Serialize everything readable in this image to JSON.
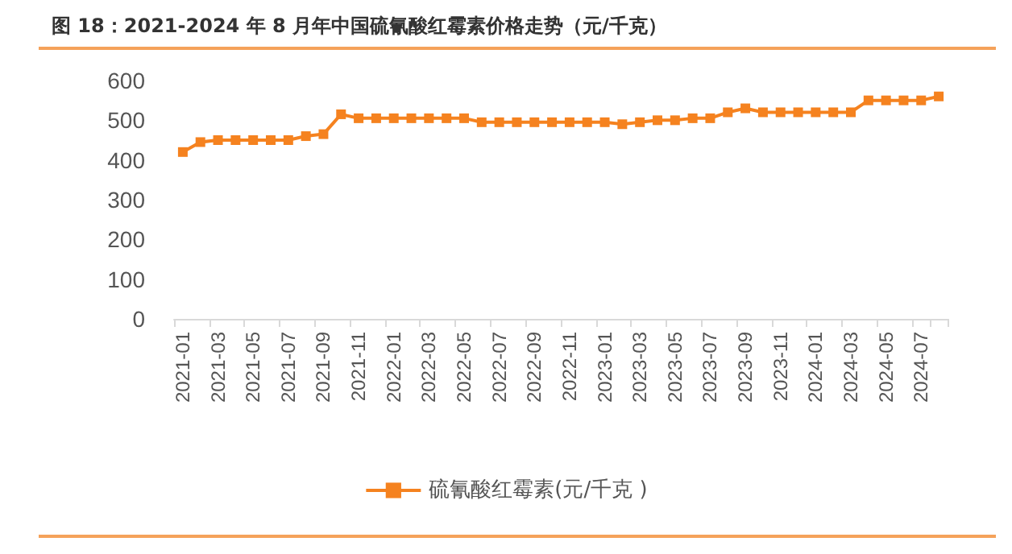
{
  "chart_data": {
    "type": "line",
    "title": "图 18：2021-2024 年 8 月年中国硫氰酸红霉素价格走势（元/千克）",
    "categories": [
      "2021-01",
      null,
      "2021-03",
      null,
      "2021-05",
      null,
      "2021-07",
      null,
      "2021-09",
      null,
      "2021-11",
      null,
      "2022-01",
      null,
      "2022-03",
      null,
      "2022-05",
      null,
      "2022-07",
      null,
      "2022-09",
      null,
      "2022-11",
      null,
      "2023-01",
      null,
      "2023-03",
      null,
      "2023-05",
      null,
      "2023-07",
      null,
      "2023-09",
      null,
      "2023-11",
      null,
      "2024-01",
      null,
      "2024-03",
      null,
      "2024-05",
      null,
      "2024-07",
      null
    ],
    "series": [
      {
        "name": "硫氰酸红霉素(元/千克 )",
        "color": "#f5821f",
        "values": [
          420,
          445,
          450,
          450,
          450,
          450,
          450,
          460,
          465,
          515,
          505,
          505,
          505,
          505,
          505,
          505,
          505,
          495,
          495,
          495,
          495,
          495,
          495,
          495,
          495,
          490,
          495,
          500,
          500,
          505,
          505,
          520,
          530,
          520,
          520,
          520,
          520,
          520,
          520,
          550,
          550,
          550,
          550,
          560
        ]
      }
    ],
    "ylim": [
      0,
      600
    ],
    "yticks": [
      0,
      100,
      200,
      300,
      400,
      500,
      600
    ],
    "grid": false,
    "legend": "bottom",
    "marker": "square",
    "line_style": "solid"
  }
}
